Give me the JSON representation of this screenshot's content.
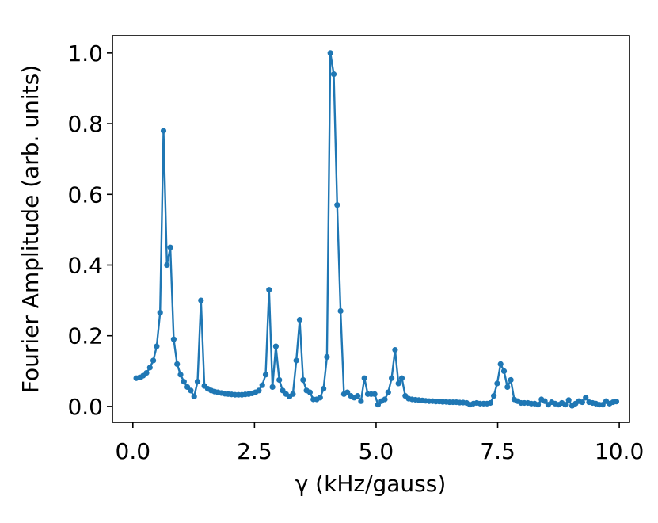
{
  "chart_data": {
    "type": "line",
    "xlabel": "γ (kHz/gauss)",
    "ylabel": "Fourier Amplitude (arb. units)",
    "x": [
      0.07,
      0.14,
      0.21,
      0.28,
      0.35,
      0.42,
      0.49,
      0.56,
      0.63,
      0.7,
      0.77,
      0.84,
      0.91,
      0.98,
      1.05,
      1.12,
      1.19,
      1.26,
      1.33,
      1.4,
      1.47,
      1.54,
      1.61,
      1.68,
      1.75,
      1.82,
      1.89,
      1.96,
      2.03,
      2.1,
      2.17,
      2.24,
      2.31,
      2.38,
      2.45,
      2.52,
      2.59,
      2.66,
      2.73,
      2.8,
      2.87,
      2.94,
      3.01,
      3.08,
      3.15,
      3.22,
      3.29,
      3.36,
      3.43,
      3.5,
      3.57,
      3.64,
      3.71,
      3.78,
      3.85,
      3.92,
      3.99,
      4.06,
      4.13,
      4.2,
      4.27,
      4.34,
      4.41,
      4.48,
      4.55,
      4.62,
      4.69,
      4.76,
      4.83,
      4.9,
      4.97,
      5.04,
      5.11,
      5.18,
      5.25,
      5.32,
      5.39,
      5.46,
      5.53,
      5.6,
      5.67,
      5.74,
      5.81,
      5.88,
      5.95,
      6.02,
      6.09,
      6.16,
      6.23,
      6.3,
      6.37,
      6.44,
      6.51,
      6.58,
      6.65,
      6.72,
      6.79,
      6.86,
      6.93,
      7,
      7.07,
      7.14,
      7.21,
      7.28,
      7.35,
      7.42,
      7.49,
      7.56,
      7.63,
      7.7,
      7.77,
      7.84,
      7.91,
      7.98,
      8.05,
      8.12,
      8.19,
      8.26,
      8.33,
      8.4,
      8.47,
      8.54,
      8.61,
      8.68,
      8.75,
      8.82,
      8.89,
      8.96,
      9.03,
      9.1,
      9.17,
      9.24,
      9.31,
      9.38,
      9.45,
      9.52,
      9.59,
      9.66,
      9.73,
      9.8,
      9.87,
      9.94
    ],
    "series": [
      {
        "color": "#1f77b4",
        "values": [
          0.08,
          0.082,
          0.087,
          0.095,
          0.11,
          0.13,
          0.17,
          0.265,
          0.78,
          0.4,
          0.45,
          0.19,
          0.12,
          0.09,
          0.07,
          0.055,
          0.045,
          0.028,
          0.07,
          0.3,
          0.058,
          0.05,
          0.045,
          0.042,
          0.04,
          0.038,
          0.036,
          0.035,
          0.034,
          0.033,
          0.033,
          0.033,
          0.034,
          0.035,
          0.037,
          0.04,
          0.045,
          0.06,
          0.09,
          0.33,
          0.055,
          0.17,
          0.075,
          0.045,
          0.035,
          0.028,
          0.035,
          0.13,
          0.245,
          0.075,
          0.045,
          0.04,
          0.02,
          0.02,
          0.025,
          0.05,
          0.14,
          1.0,
          0.94,
          0.57,
          0.27,
          0.035,
          0.04,
          0.03,
          0.025,
          0.03,
          0.015,
          0.08,
          0.035,
          0.035,
          0.035,
          0.005,
          0.015,
          0.02,
          0.04,
          0.08,
          0.16,
          0.065,
          0.08,
          0.03,
          0.022,
          0.02,
          0.019,
          0.018,
          0.017,
          0.016,
          0.015,
          0.015,
          0.014,
          0.014,
          0.013,
          0.013,
          0.012,
          0.012,
          0.012,
          0.011,
          0.011,
          0.01,
          0.005,
          0.008,
          0.01,
          0.008,
          0.008,
          0.008,
          0.01,
          0.03,
          0.065,
          0.12,
          0.1,
          0.055,
          0.075,
          0.02,
          0.015,
          0.01,
          0.01,
          0.01,
          0.008,
          0.008,
          0.005,
          0.02,
          0.015,
          0.005,
          0.012,
          0.008,
          0.005,
          0.01,
          0.005,
          0.018,
          0.002,
          0.008,
          0.015,
          0.012,
          0.025,
          0.012,
          0.01,
          0.008,
          0.005,
          0.005,
          0.015,
          0.008,
          0.012,
          0.014
        ]
      }
    ],
    "xlim": [
      -0.42,
      10.21
    ],
    "ylim": [
      -0.045,
      1.049
    ],
    "xticks": [
      {
        "value": 0,
        "label": "0.0"
      },
      2.5,
      {
        "value": 5,
        "label": "5.0"
      },
      7.5,
      {
        "value": 10,
        "label": "10.0"
      }
    ],
    "yticks": [
      {
        "value": 0,
        "label": "0.0"
      },
      0.2,
      0.4,
      0.6,
      0.8,
      {
        "value": 1,
        "label": "1.0"
      }
    ],
    "markers": true
  }
}
